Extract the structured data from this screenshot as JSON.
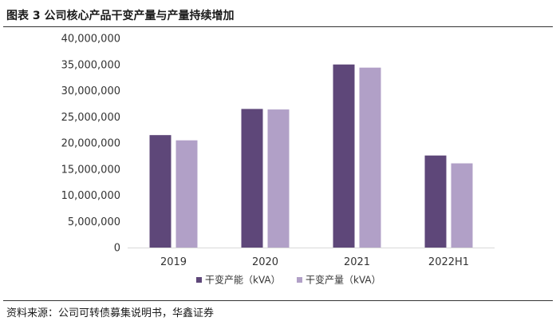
{
  "figure": {
    "title": "图表 3  公司核心产品干变产量与产量持续增加",
    "source": "资料来源：公司可转债募集说明书，华鑫证券"
  },
  "chart_data": {
    "type": "bar",
    "title": "",
    "xlabel": "",
    "ylabel": "",
    "categories": [
      "2019",
      "2020",
      "2021",
      "2022H1"
    ],
    "series": [
      {
        "name": "干变产能（kVA）",
        "color": "#5e4779",
        "values": [
          21500000,
          26500000,
          35000000,
          17600000
        ]
      },
      {
        "name": "干变产量（kVA）",
        "color": "#b1a0c7",
        "values": [
          20500000,
          26400000,
          34400000,
          16100000
        ]
      }
    ],
    "ylim": [
      0,
      40000000
    ],
    "yticks": [
      0,
      5000000,
      10000000,
      15000000,
      20000000,
      25000000,
      30000000,
      35000000,
      40000000
    ],
    "ytick_labels": [
      "0",
      "5,000,000",
      "10,000,000",
      "15,000,000",
      "20,000,000",
      "25,000,000",
      "30,000,000",
      "35,000,000",
      "40,000,000"
    ],
    "grid": false,
    "legend_position": "bottom"
  }
}
